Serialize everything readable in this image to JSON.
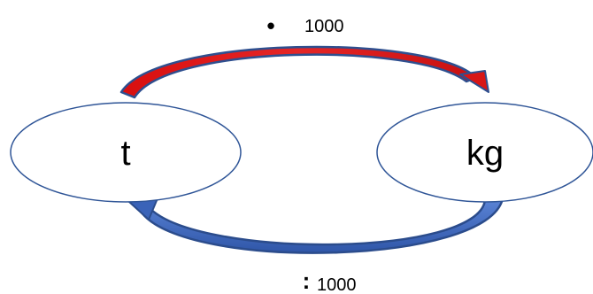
{
  "units": {
    "left": "t",
    "right": "kg"
  },
  "top_operation": {
    "symbol": "•",
    "value": "1000"
  },
  "bottom_operation": {
    "symbol": ":",
    "value": "1000"
  },
  "colors": {
    "ellipse_stroke": "#2F5597",
    "top_arrow_fill": "#E01B1B",
    "top_arrow_outline": "#2E4F8F",
    "bottom_arrow_fill": "#3A63B8",
    "bottom_arrow_outline": "#2B4C8C"
  }
}
